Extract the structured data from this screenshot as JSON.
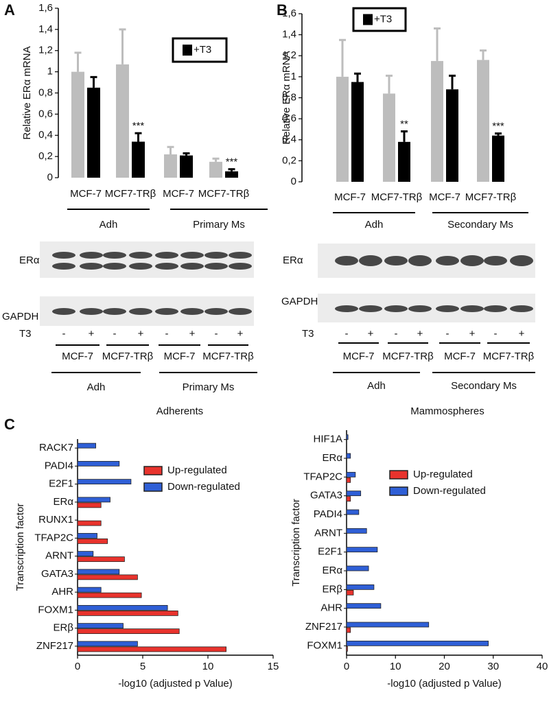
{
  "panels": [
    "A",
    "B",
    "C"
  ],
  "chart_data": [
    {
      "type": "bar",
      "ylabel": "Relative ERα mRNA",
      "categories": [
        "MCF-7",
        "MCF7-TRβ",
        "MCF-7",
        "MCF7-TRβ"
      ],
      "groups": [
        "Adh",
        "Primary Ms"
      ],
      "series": [
        {
          "color": "#bdbdbd",
          "values": [
            1.0,
            1.07,
            0.22,
            0.15
          ],
          "errors": [
            0.18,
            0.33,
            0.07,
            0.03
          ]
        },
        {
          "name": "+T3",
          "color": "#000000",
          "values": [
            0.85,
            0.34,
            0.21,
            0.06
          ],
          "errors": [
            0.1,
            0.08,
            0.02,
            0.02
          ],
          "value_annotations": [
            null,
            "***",
            null,
            "***"
          ]
        }
      ],
      "ylim": [
        0,
        1.6
      ],
      "yticks": [
        0,
        {
          "value": 0.2,
          "label": "0,2"
        },
        {
          "value": 0.4,
          "label": "0,4"
        },
        {
          "value": 0.6,
          "label": "0,6"
        },
        {
          "value": 0.8,
          "label": "0,8"
        },
        1,
        {
          "value": 1.2,
          "label": "1,2"
        },
        {
          "value": 1.4,
          "label": "1,4"
        },
        {
          "value": 1.6,
          "label": "1,6"
        }
      ]
    },
    {
      "type": "bar",
      "ylabel": "Relative ERα mRNA",
      "categories": [
        "MCF-7",
        "MCF7-TRβ",
        "MCF-7",
        "MCF7-TRβ"
      ],
      "groups": [
        "Adh",
        "Secondary Ms"
      ],
      "series": [
        {
          "color": "#bdbdbd",
          "values": [
            1.0,
            0.84,
            1.15,
            1.16
          ],
          "errors": [
            0.35,
            0.17,
            0.31,
            0.09
          ]
        },
        {
          "name": "+T3",
          "color": "#000000",
          "values": [
            0.95,
            0.38,
            0.88,
            0.44
          ],
          "errors": [
            0.08,
            0.1,
            0.13,
            0.02
          ],
          "value_annotations": [
            null,
            "**",
            null,
            "***"
          ]
        }
      ],
      "ylim": [
        0,
        1.6
      ],
      "yticks": [
        0,
        {
          "value": 0.2,
          "label": "0,2"
        },
        {
          "value": 0.4,
          "label": "0,4"
        },
        {
          "value": 0.6,
          "label": "0,6"
        },
        {
          "value": 0.8,
          "label": "0,8"
        },
        1,
        {
          "value": 1.2,
          "label": "1,2"
        },
        {
          "value": 1.4,
          "label": "1,4"
        },
        {
          "value": 1.6,
          "label": "1,6"
        }
      ]
    },
    {
      "type": "barh",
      "title": "Adherents",
      "xlabel": "-log10 (adjusted p Value)",
      "ylabel": "Transcription factor",
      "categories": [
        "RACK7",
        "PADI4",
        "E2F1",
        "ERα",
        "RUNX1",
        "TFAP2C",
        "ARNT",
        "GATA3",
        "AHR",
        "FOXM1",
        "ERβ",
        "ZNF217"
      ],
      "series": [
        {
          "name": "Up-regulated",
          "color": "#e8332d",
          "values": [
            null,
            null,
            null,
            1.8,
            1.8,
            2.3,
            3.6,
            4.6,
            4.9,
            7.7,
            7.8,
            11.4
          ]
        },
        {
          "name": "Down-regulated",
          "color": "#2f5fd6",
          "values": [
            1.4,
            3.2,
            4.1,
            2.5,
            null,
            1.5,
            1.2,
            3.2,
            1.8,
            6.9,
            3.5,
            4.6
          ]
        }
      ],
      "xlim": [
        0,
        15
      ],
      "xticks": [
        0,
        5,
        10,
        15
      ]
    },
    {
      "type": "barh",
      "title": "Mammospheres",
      "xlabel": "-log10 (adjusted p Value)",
      "ylabel": "Transcription factor",
      "categories": [
        "HIF1A",
        "ERα",
        "TFAP2C",
        "GATA3",
        "PADI4",
        "ARNT",
        "E2F1",
        "ERα",
        "ERβ",
        "AHR",
        "ZNF217",
        "FOXM1"
      ],
      "series": [
        {
          "name": "Up-regulated",
          "color": "#e8332d",
          "values": [
            null,
            null,
            0.8,
            0.8,
            null,
            null,
            null,
            null,
            1.4,
            null,
            0.8,
            0.2
          ]
        },
        {
          "name": "Down-regulated",
          "color": "#2f5fd6",
          "values": [
            0.3,
            0.8,
            1.8,
            2.9,
            2.5,
            4.1,
            6.3,
            4.5,
            5.6,
            7.0,
            16.8,
            29
          ]
        }
      ],
      "xlim": [
        0,
        40
      ],
      "xticks": [
        0,
        10,
        20,
        30,
        40
      ]
    }
  ],
  "blots": [
    {
      "rows": [
        "ERα",
        "GAPDH"
      ],
      "treatment": "T3",
      "lanes": [
        "-",
        "+",
        "-",
        "+",
        "-",
        "+",
        "-",
        "+"
      ],
      "lines": [
        "MCF-7",
        "MCF7-TRβ",
        "MCF-7",
        "MCF7-TRβ"
      ],
      "groups": [
        "Adh",
        "Primary Ms"
      ]
    },
    {
      "rows": [
        "ERα",
        "GAPDH"
      ],
      "treatment": "T3",
      "lanes": [
        "-",
        "+",
        "-",
        "+",
        "-",
        "+",
        "-",
        "+"
      ],
      "lines": [
        "MCF-7",
        "MCF7-TRβ",
        "MCF-7",
        "MCF7-TRβ"
      ],
      "groups": [
        "Adh",
        "Secondary Ms"
      ]
    }
  ]
}
